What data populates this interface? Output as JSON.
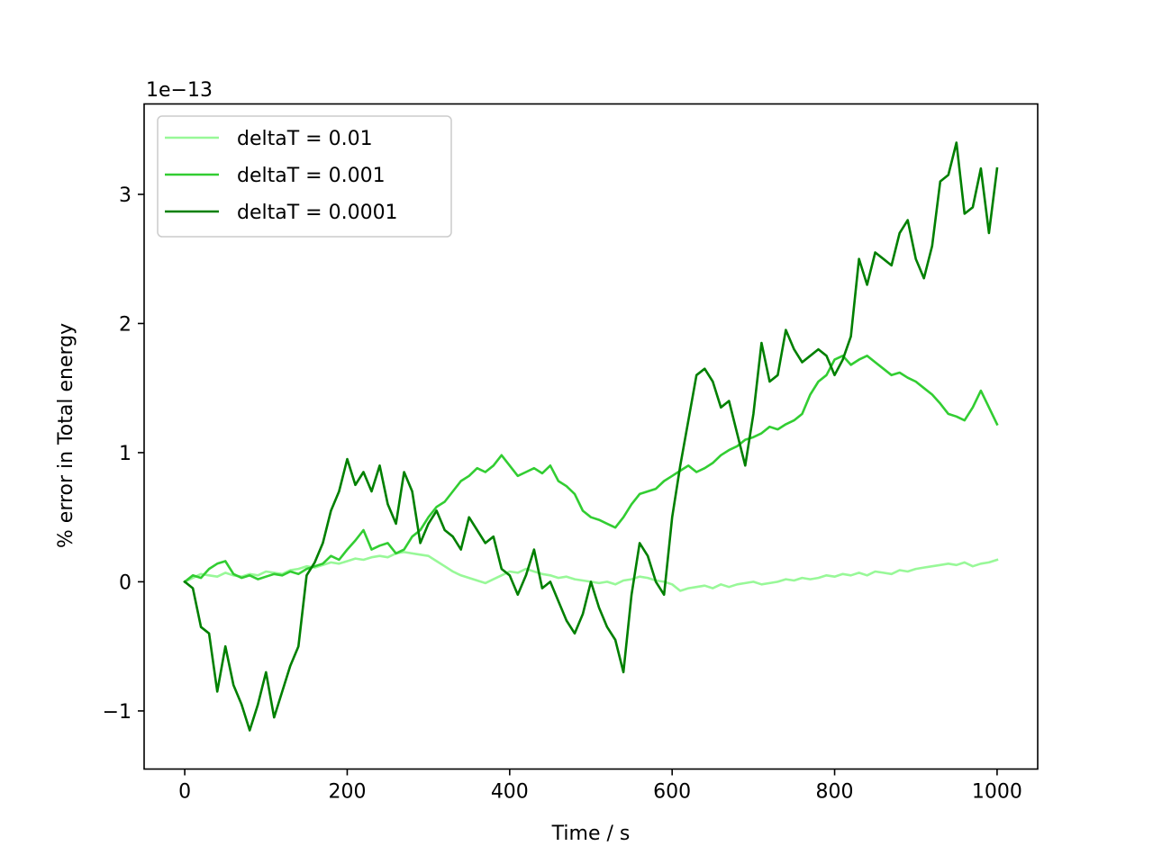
{
  "chart_data": {
    "type": "line",
    "xlabel": "Time / s",
    "ylabel": "% error in Total energy",
    "offset_label": "1e−13",
    "xlim": [
      -50,
      1050
    ],
    "ylim": [
      -1.45,
      3.7
    ],
    "x_ticks": [
      0,
      200,
      400,
      600,
      800,
      1000
    ],
    "x_tick_labels": [
      "0",
      "200",
      "400",
      "600",
      "800",
      "1000"
    ],
    "y_ticks": [
      -1,
      0,
      1,
      2,
      3
    ],
    "y_tick_labels": [
      "−1",
      "0",
      "1",
      "2",
      "3"
    ],
    "grid": false,
    "legend_position": "top-left",
    "series": [
      {
        "name": "deltaT = 0.01",
        "color": "#98f898",
        "x": [
          0,
          10,
          20,
          30,
          40,
          50,
          60,
          70,
          80,
          90,
          100,
          110,
          120,
          130,
          140,
          150,
          160,
          170,
          180,
          190,
          200,
          210,
          220,
          230,
          240,
          250,
          260,
          270,
          280,
          290,
          300,
          310,
          320,
          330,
          340,
          350,
          360,
          370,
          380,
          390,
          400,
          410,
          420,
          430,
          440,
          450,
          460,
          470,
          480,
          490,
          500,
          510,
          520,
          530,
          540,
          550,
          560,
          570,
          580,
          590,
          600,
          610,
          620,
          630,
          640,
          650,
          660,
          670,
          680,
          690,
          700,
          710,
          720,
          730,
          740,
          750,
          760,
          770,
          780,
          790,
          800,
          810,
          820,
          830,
          840,
          850,
          860,
          870,
          880,
          890,
          900,
          910,
          920,
          930,
          940,
          950,
          960,
          970,
          980,
          990,
          1000
        ],
        "values": [
          0.0,
          0.03,
          0.06,
          0.05,
          0.04,
          0.07,
          0.05,
          0.04,
          0.06,
          0.05,
          0.08,
          0.07,
          0.06,
          0.09,
          0.1,
          0.12,
          0.11,
          0.13,
          0.15,
          0.14,
          0.16,
          0.18,
          0.17,
          0.19,
          0.2,
          0.19,
          0.22,
          0.23,
          0.22,
          0.21,
          0.2,
          0.16,
          0.12,
          0.08,
          0.05,
          0.03,
          0.01,
          -0.01,
          0.02,
          0.05,
          0.08,
          0.07,
          0.1,
          0.08,
          0.06,
          0.05,
          0.03,
          0.04,
          0.02,
          0.01,
          0.0,
          -0.01,
          0.0,
          -0.02,
          0.01,
          0.02,
          0.04,
          0.03,
          0.01,
          0.0,
          -0.02,
          -0.07,
          -0.05,
          -0.04,
          -0.03,
          -0.05,
          -0.02,
          -0.04,
          -0.02,
          -0.01,
          0.0,
          -0.02,
          -0.01,
          0.0,
          0.02,
          0.01,
          0.03,
          0.02,
          0.03,
          0.05,
          0.04,
          0.06,
          0.05,
          0.07,
          0.05,
          0.08,
          0.07,
          0.06,
          0.09,
          0.08,
          0.1,
          0.11,
          0.12,
          0.13,
          0.14,
          0.13,
          0.15,
          0.12,
          0.14,
          0.15,
          0.17
        ]
      },
      {
        "name": "deltaT = 0.001",
        "color": "#32cd32",
        "x": [
          0,
          10,
          20,
          30,
          40,
          50,
          60,
          70,
          80,
          90,
          100,
          110,
          120,
          130,
          140,
          150,
          160,
          170,
          180,
          190,
          200,
          210,
          220,
          230,
          240,
          250,
          260,
          270,
          280,
          290,
          300,
          310,
          320,
          330,
          340,
          350,
          360,
          370,
          380,
          390,
          400,
          410,
          420,
          430,
          440,
          450,
          460,
          470,
          480,
          490,
          500,
          510,
          520,
          530,
          540,
          550,
          560,
          570,
          580,
          590,
          600,
          610,
          620,
          630,
          640,
          650,
          660,
          670,
          680,
          690,
          700,
          710,
          720,
          730,
          740,
          750,
          760,
          770,
          780,
          790,
          800,
          810,
          820,
          830,
          840,
          850,
          860,
          870,
          880,
          890,
          900,
          910,
          920,
          930,
          940,
          950,
          960,
          970,
          980,
          990,
          1000
        ],
        "values": [
          0.0,
          0.05,
          0.03,
          0.1,
          0.14,
          0.16,
          0.06,
          0.03,
          0.05,
          0.02,
          0.04,
          0.06,
          0.05,
          0.08,
          0.06,
          0.1,
          0.12,
          0.14,
          0.2,
          0.17,
          0.25,
          0.32,
          0.4,
          0.25,
          0.28,
          0.3,
          0.22,
          0.25,
          0.35,
          0.4,
          0.5,
          0.58,
          0.62,
          0.7,
          0.78,
          0.82,
          0.88,
          0.85,
          0.9,
          0.98,
          0.9,
          0.82,
          0.85,
          0.88,
          0.84,
          0.9,
          0.78,
          0.74,
          0.68,
          0.55,
          0.5,
          0.48,
          0.45,
          0.42,
          0.5,
          0.6,
          0.68,
          0.7,
          0.72,
          0.78,
          0.82,
          0.86,
          0.9,
          0.85,
          0.88,
          0.92,
          0.98,
          1.02,
          1.05,
          1.1,
          1.12,
          1.15,
          1.2,
          1.18,
          1.22,
          1.25,
          1.3,
          1.45,
          1.55,
          1.6,
          1.72,
          1.75,
          1.68,
          1.72,
          1.75,
          1.7,
          1.65,
          1.6,
          1.62,
          1.58,
          1.55,
          1.5,
          1.45,
          1.38,
          1.3,
          1.28,
          1.25,
          1.35,
          1.48,
          1.35,
          1.22
        ]
      },
      {
        "name": "deltaT = 0.0001",
        "color": "#008000",
        "x": [
          0,
          10,
          20,
          30,
          40,
          50,
          60,
          70,
          80,
          90,
          100,
          110,
          120,
          130,
          140,
          150,
          160,
          170,
          180,
          190,
          200,
          210,
          220,
          230,
          240,
          250,
          260,
          270,
          280,
          290,
          300,
          310,
          320,
          330,
          340,
          350,
          360,
          370,
          380,
          390,
          400,
          410,
          420,
          430,
          440,
          450,
          460,
          470,
          480,
          490,
          500,
          510,
          520,
          530,
          540,
          550,
          560,
          570,
          580,
          590,
          600,
          610,
          620,
          630,
          640,
          650,
          660,
          670,
          680,
          690,
          700,
          710,
          720,
          730,
          740,
          750,
          760,
          770,
          780,
          790,
          800,
          810,
          820,
          830,
          840,
          850,
          860,
          870,
          880,
          890,
          900,
          910,
          920,
          930,
          940,
          950,
          960,
          970,
          980,
          990,
          1000
        ],
        "values": [
          0.0,
          -0.05,
          -0.35,
          -0.4,
          -0.85,
          -0.5,
          -0.8,
          -0.95,
          -1.15,
          -0.95,
          -0.7,
          -1.05,
          -0.85,
          -0.65,
          -0.5,
          0.05,
          0.15,
          0.3,
          0.55,
          0.7,
          0.95,
          0.75,
          0.85,
          0.7,
          0.9,
          0.6,
          0.45,
          0.85,
          0.7,
          0.3,
          0.45,
          0.55,
          0.4,
          0.35,
          0.25,
          0.5,
          0.4,
          0.3,
          0.35,
          0.1,
          0.05,
          -0.1,
          0.05,
          0.25,
          -0.05,
          0.0,
          -0.15,
          -0.3,
          -0.4,
          -0.25,
          0.0,
          -0.2,
          -0.35,
          -0.45,
          -0.7,
          -0.1,
          0.3,
          0.2,
          0.0,
          -0.1,
          0.5,
          0.9,
          1.25,
          1.6,
          1.65,
          1.55,
          1.35,
          1.4,
          1.15,
          0.9,
          1.3,
          1.85,
          1.55,
          1.6,
          1.95,
          1.8,
          1.7,
          1.75,
          1.8,
          1.75,
          1.6,
          1.72,
          1.9,
          2.5,
          2.3,
          2.55,
          2.5,
          2.45,
          2.7,
          2.8,
          2.5,
          2.35,
          2.6,
          3.1,
          3.15,
          3.4,
          2.85,
          2.9,
          3.2,
          2.7,
          3.2
        ]
      }
    ]
  }
}
